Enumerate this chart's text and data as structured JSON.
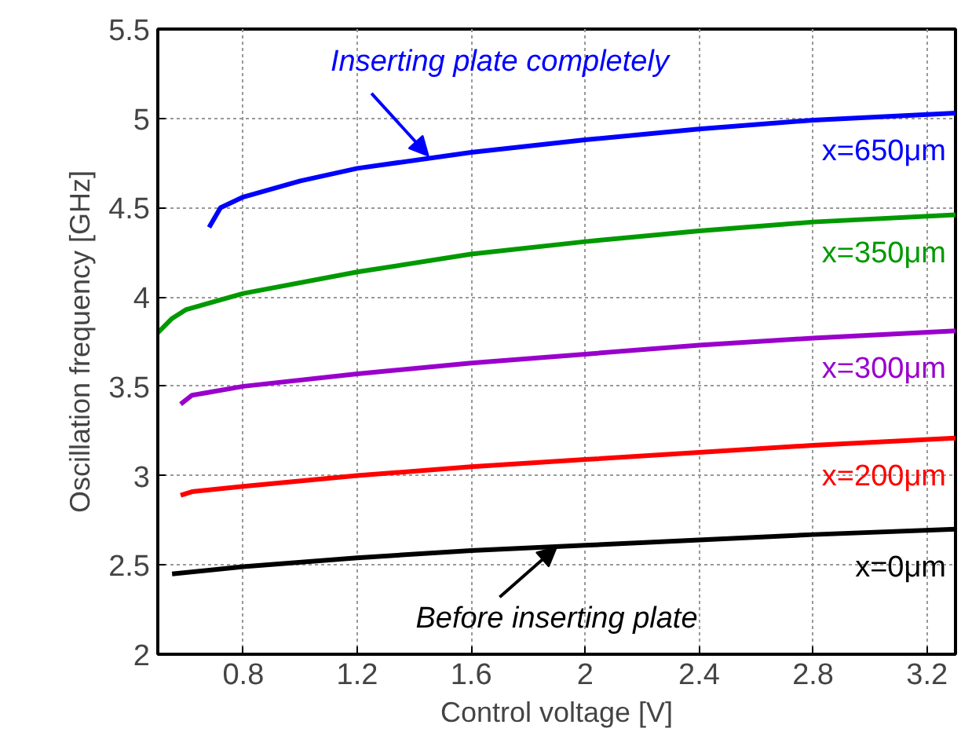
{
  "chart_data": {
    "type": "line",
    "xlabel": "Control voltage [V]",
    "ylabel": "Oscillation frequency [GHz]",
    "xlim": [
      0.5,
      3.3
    ],
    "ylim": [
      2,
      5.5
    ],
    "xticks": [
      0.8,
      1.2,
      1.6,
      2,
      2.4,
      2.8,
      3.2
    ],
    "yticks": [
      2,
      2.5,
      3,
      3.5,
      4,
      4.5,
      5,
      5.5
    ],
    "grid": true,
    "line_style": "solid",
    "marker": "none",
    "series": [
      {
        "name": "x=650μm",
        "color": "#0000ff",
        "x": [
          0.68,
          0.72,
          0.8,
          1.0,
          1.2,
          1.6,
          2.0,
          2.4,
          2.8,
          3.3
        ],
        "values": [
          4.39,
          4.5,
          4.56,
          4.65,
          4.72,
          4.81,
          4.88,
          4.94,
          4.99,
          5.03
        ]
      },
      {
        "name": "x=350μm",
        "color": "#009900",
        "x": [
          0.5,
          0.55,
          0.6,
          0.8,
          1.2,
          1.6,
          2.0,
          2.4,
          2.8,
          3.3
        ],
        "values": [
          3.8,
          3.88,
          3.93,
          4.02,
          4.14,
          4.24,
          4.31,
          4.37,
          4.42,
          4.46
        ]
      },
      {
        "name": "x=300μm",
        "color": "#9900cc",
        "x": [
          0.58,
          0.62,
          0.8,
          1.2,
          1.6,
          2.0,
          2.4,
          2.8,
          3.3
        ],
        "values": [
          3.4,
          3.45,
          3.5,
          3.57,
          3.63,
          3.68,
          3.73,
          3.77,
          3.81
        ]
      },
      {
        "name": "x=200μm",
        "color": "#ff0000",
        "x": [
          0.58,
          0.62,
          0.8,
          1.2,
          1.6,
          2.0,
          2.4,
          2.8,
          3.3
        ],
        "values": [
          2.89,
          2.91,
          2.94,
          3.0,
          3.05,
          3.09,
          3.13,
          3.17,
          3.21
        ]
      },
      {
        "name": "x=0μm",
        "color": "#000000",
        "x": [
          0.55,
          0.8,
          1.2,
          1.6,
          2.0,
          2.4,
          2.8,
          3.3
        ],
        "values": [
          2.45,
          2.49,
          2.54,
          2.58,
          2.61,
          2.64,
          2.67,
          2.7
        ]
      }
    ],
    "annotations": [
      {
        "text": "Inserting plate completely",
        "x": 1.45,
        "y": 4.79
      },
      {
        "text": "Before inserting plate",
        "x": 1.9,
        "y": 2.6
      }
    ]
  }
}
